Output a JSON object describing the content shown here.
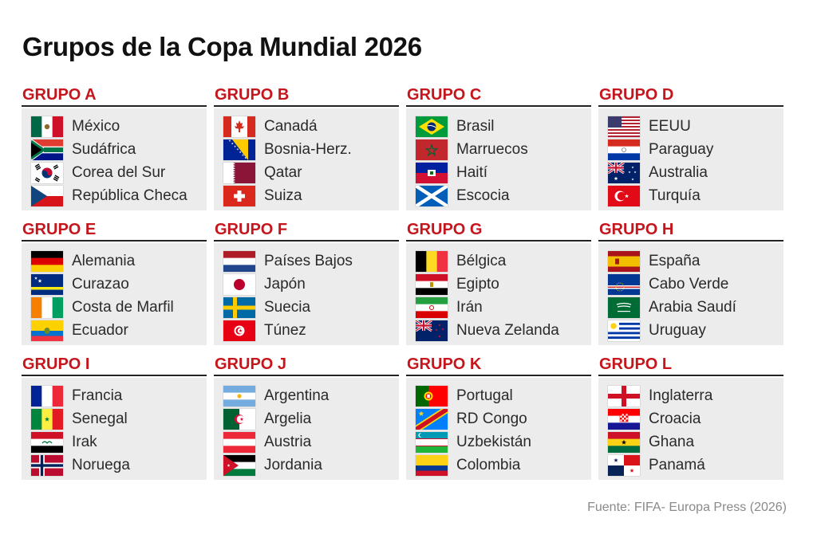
{
  "title": "Grupos de la Copa Mundial 2026",
  "source": "Fuente: FIFA- Europa Press (2026)",
  "colors": {
    "group_title": "#c4161c",
    "panel_bg": "#ececec",
    "rule": "#222222"
  },
  "groups": [
    {
      "name": "GRUPO A",
      "teams": [
        {
          "name": "México",
          "flag": "mexico-flag-icon"
        },
        {
          "name": "Sudáfrica",
          "flag": "south-africa-flag-icon"
        },
        {
          "name": "Corea del Sur",
          "flag": "south-korea-flag-icon"
        },
        {
          "name": "República Checa",
          "flag": "czech-republic-flag-icon"
        }
      ]
    },
    {
      "name": "GRUPO B",
      "teams": [
        {
          "name": "Canadá",
          "flag": "canada-flag-icon"
        },
        {
          "name": "Bosnia-Herz.",
          "flag": "bosnia-flag-icon"
        },
        {
          "name": "Qatar",
          "flag": "qatar-flag-icon"
        },
        {
          "name": "Suiza",
          "flag": "switzerland-flag-icon"
        }
      ]
    },
    {
      "name": "GRUPO C",
      "teams": [
        {
          "name": "Brasil",
          "flag": "brazil-flag-icon"
        },
        {
          "name": "Marruecos",
          "flag": "morocco-flag-icon"
        },
        {
          "name": "Haití",
          "flag": "haiti-flag-icon"
        },
        {
          "name": "Escocia",
          "flag": "scotland-flag-icon"
        }
      ]
    },
    {
      "name": "GRUPO D",
      "teams": [
        {
          "name": "EEUU",
          "flag": "usa-flag-icon"
        },
        {
          "name": "Paraguay",
          "flag": "paraguay-flag-icon"
        },
        {
          "name": "Australia",
          "flag": "australia-flag-icon"
        },
        {
          "name": "Turquía",
          "flag": "turkey-flag-icon"
        }
      ]
    },
    {
      "name": "GRUPO E",
      "teams": [
        {
          "name": "Alemania",
          "flag": "germany-flag-icon"
        },
        {
          "name": "Curazao",
          "flag": "curacao-flag-icon"
        },
        {
          "name": "Costa de Marfil",
          "flag": "ivory-coast-flag-icon"
        },
        {
          "name": "Ecuador",
          "flag": "ecuador-flag-icon"
        }
      ]
    },
    {
      "name": "GRUPO F",
      "teams": [
        {
          "name": "Países Bajos",
          "flag": "netherlands-flag-icon"
        },
        {
          "name": "Japón",
          "flag": "japan-flag-icon"
        },
        {
          "name": "Suecia",
          "flag": "sweden-flag-icon"
        },
        {
          "name": "Túnez",
          "flag": "tunisia-flag-icon"
        }
      ]
    },
    {
      "name": "GRUPO G",
      "teams": [
        {
          "name": "Bélgica",
          "flag": "belgium-flag-icon"
        },
        {
          "name": "Egipto",
          "flag": "egypt-flag-icon"
        },
        {
          "name": "Irán",
          "flag": "iran-flag-icon"
        },
        {
          "name": "Nueva Zelanda",
          "flag": "new-zealand-flag-icon"
        }
      ]
    },
    {
      "name": "GRUPO H",
      "teams": [
        {
          "name": "España",
          "flag": "spain-flag-icon"
        },
        {
          "name": "Cabo Verde",
          "flag": "cape-verde-flag-icon"
        },
        {
          "name": "Arabia Saudí",
          "flag": "saudi-arabia-flag-icon"
        },
        {
          "name": "Uruguay",
          "flag": "uruguay-flag-icon"
        }
      ]
    },
    {
      "name": "GRUPO I",
      "teams": [
        {
          "name": "Francia",
          "flag": "france-flag-icon"
        },
        {
          "name": "Senegal",
          "flag": "senegal-flag-icon"
        },
        {
          "name": "Irak",
          "flag": "iraq-flag-icon"
        },
        {
          "name": "Noruega",
          "flag": "norway-flag-icon"
        }
      ]
    },
    {
      "name": "GRUPO J",
      "teams": [
        {
          "name": "Argentina",
          "flag": "argentina-flag-icon"
        },
        {
          "name": "Argelia",
          "flag": "algeria-flag-icon"
        },
        {
          "name": "Austria",
          "flag": "austria-flag-icon"
        },
        {
          "name": "Jordania",
          "flag": "jordan-flag-icon"
        }
      ]
    },
    {
      "name": "GRUPO K",
      "teams": [
        {
          "name": "Portugal",
          "flag": "portugal-flag-icon"
        },
        {
          "name": "RD Congo",
          "flag": "dr-congo-flag-icon"
        },
        {
          "name": "Uzbekistán",
          "flag": "uzbekistan-flag-icon"
        },
        {
          "name": "Colombia",
          "flag": "colombia-flag-icon"
        }
      ]
    },
    {
      "name": "GRUPO L",
      "teams": [
        {
          "name": "Inglaterra",
          "flag": "england-flag-icon"
        },
        {
          "name": "Croacia",
          "flag": "croatia-flag-icon"
        },
        {
          "name": "Ghana",
          "flag": "ghana-flag-icon"
        },
        {
          "name": "Panamá",
          "flag": "panama-flag-icon"
        }
      ]
    }
  ]
}
